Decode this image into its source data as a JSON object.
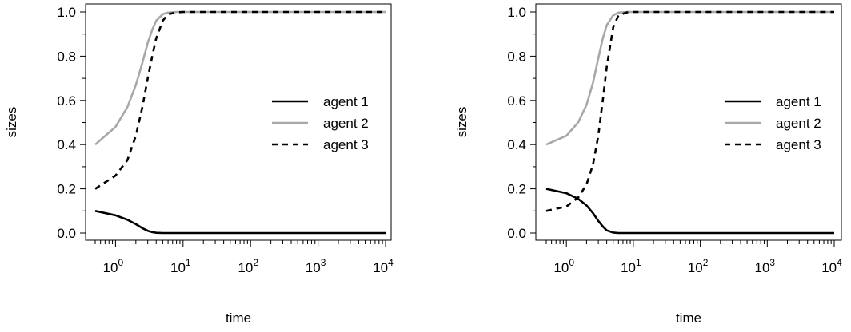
{
  "chart_data": [
    {
      "type": "line",
      "xlabel": "time",
      "ylabel": "sizes",
      "x_scale": "log10",
      "xlim": [
        0.5,
        10000
      ],
      "ylim": [
        0,
        1
      ],
      "x_ticks": [
        {
          "value": 1,
          "base": "10",
          "exp": "0"
        },
        {
          "value": 10,
          "base": "10",
          "exp": "1"
        },
        {
          "value": 100,
          "base": "10",
          "exp": "2"
        },
        {
          "value": 1000,
          "base": "10",
          "exp": "3"
        },
        {
          "value": 10000,
          "base": "10",
          "exp": "4"
        }
      ],
      "y_ticks": [
        "0.0",
        "0.2",
        "0.4",
        "0.6",
        "0.8",
        "1.0"
      ],
      "legend": {
        "position": "right",
        "entries": [
          "agent 1",
          "agent 2",
          "agent 3"
        ]
      },
      "series": [
        {
          "name": "agent 1",
          "color": "#000000",
          "dash": "solid",
          "x": [
            0.5,
            1,
            1.5,
            2,
            2.5,
            3,
            3.5,
            4,
            5,
            6,
            8,
            10,
            100,
            10000
          ],
          "y": [
            0.1,
            0.08,
            0.06,
            0.04,
            0.022,
            0.01,
            0.004,
            0.001,
            0,
            0,
            0,
            0,
            0,
            0
          ]
        },
        {
          "name": "agent 2",
          "color": "#a8a8a8",
          "dash": "solid",
          "x": [
            0.5,
            1,
            1.5,
            2,
            2.5,
            3,
            3.5,
            4,
            5,
            6,
            8,
            10,
            100,
            10000
          ],
          "y": [
            0.4,
            0.48,
            0.57,
            0.67,
            0.77,
            0.86,
            0.92,
            0.96,
            0.99,
            0.997,
            1,
            1,
            1,
            1
          ]
        },
        {
          "name": "agent 3",
          "color": "#000000",
          "dash": "dashed",
          "x": [
            0.5,
            1,
            1.5,
            2,
            2.5,
            3,
            3.5,
            4,
            5,
            6,
            8,
            10,
            100,
            10000
          ],
          "y": [
            0.2,
            0.26,
            0.33,
            0.44,
            0.57,
            0.7,
            0.8,
            0.88,
            0.96,
            0.99,
            0.998,
            1,
            1,
            1
          ]
        }
      ]
    },
    {
      "type": "line",
      "xlabel": "time",
      "ylabel": "sizes",
      "x_scale": "log10",
      "xlim": [
        0.5,
        10000
      ],
      "ylim": [
        0,
        1
      ],
      "x_ticks": [
        {
          "value": 1,
          "base": "10",
          "exp": "0"
        },
        {
          "value": 10,
          "base": "10",
          "exp": "1"
        },
        {
          "value": 100,
          "base": "10",
          "exp": "2"
        },
        {
          "value": 1000,
          "base": "10",
          "exp": "3"
        },
        {
          "value": 10000,
          "base": "10",
          "exp": "4"
        }
      ],
      "y_ticks": [
        "0.0",
        "0.2",
        "0.4",
        "0.6",
        "0.8",
        "1.0"
      ],
      "legend": {
        "position": "right",
        "entries": [
          "agent 1",
          "agent 2",
          "agent 3"
        ]
      },
      "series": [
        {
          "name": "agent 1",
          "color": "#000000",
          "dash": "solid",
          "x": [
            0.5,
            1,
            1.5,
            2,
            2.5,
            3,
            3.5,
            4,
            5,
            6,
            8,
            10,
            100,
            10000
          ],
          "y": [
            0.2,
            0.18,
            0.155,
            0.125,
            0.09,
            0.055,
            0.03,
            0.012,
            0.002,
            0,
            0,
            0,
            0,
            0
          ]
        },
        {
          "name": "agent 2",
          "color": "#a8a8a8",
          "dash": "solid",
          "x": [
            0.5,
            1,
            1.5,
            2,
            2.5,
            3,
            3.5,
            4,
            5,
            6,
            8,
            10,
            100,
            10000
          ],
          "y": [
            0.4,
            0.44,
            0.5,
            0.58,
            0.68,
            0.79,
            0.88,
            0.94,
            0.985,
            0.997,
            1,
            1,
            1,
            1
          ]
        },
        {
          "name": "agent 3",
          "color": "#000000",
          "dash": "dashed",
          "x": [
            0.5,
            1,
            1.5,
            2,
            2.5,
            3,
            3.5,
            4,
            5,
            6,
            8,
            10,
            100,
            10000
          ],
          "y": [
            0.1,
            0.12,
            0.16,
            0.22,
            0.31,
            0.44,
            0.6,
            0.75,
            0.93,
            0.985,
            0.998,
            1,
            1,
            1
          ]
        }
      ]
    }
  ]
}
